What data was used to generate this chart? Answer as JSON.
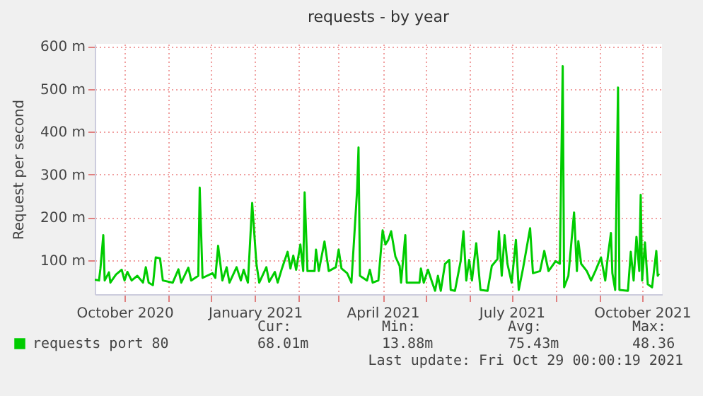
{
  "chart_data": {
    "type": "line",
    "title": "requests - by year",
    "ylabel": "Request per second",
    "xlim": [
      "2020-09-10",
      "2021-10-15"
    ],
    "xticks": [
      {
        "value": "2020-10-01",
        "label": "October 2020"
      },
      {
        "value": "2020-11-01",
        "label": null
      },
      {
        "value": "2020-12-01",
        "label": null
      },
      {
        "value": "2021-01-01",
        "label": "January 2021"
      },
      {
        "value": "2021-02-01",
        "label": null
      },
      {
        "value": "2021-03-01",
        "label": null
      },
      {
        "value": "2021-04-01",
        "label": "April 2021"
      },
      {
        "value": "2021-05-01",
        "label": null
      },
      {
        "value": "2021-06-01",
        "label": null
      },
      {
        "value": "2021-07-01",
        "label": "July 2021"
      },
      {
        "value": "2021-08-01",
        "label": null
      },
      {
        "value": "2021-09-01",
        "label": null
      },
      {
        "value": "2021-10-01",
        "label": "October 2021"
      }
    ],
    "ylim": [
      20,
      605
    ],
    "yticks": [
      {
        "value": 100,
        "label": "100 m"
      },
      {
        "value": 200,
        "label": "200 m"
      },
      {
        "value": 300,
        "label": "300 m"
      },
      {
        "value": 400,
        "label": "400 m"
      },
      {
        "value": 500,
        "label": "500 m"
      },
      {
        "value": 600,
        "label": "600 m"
      }
    ],
    "grid": true,
    "legend": "bottom",
    "marker": "none",
    "x": [
      "2020-09-10",
      "2020-09-13",
      "2020-09-14",
      "2020-09-16",
      "2020-09-17",
      "2020-09-20",
      "2020-09-21",
      "2020-09-25",
      "2020-09-29",
      "2020-10-01",
      "2020-10-03",
      "2020-10-06",
      "2020-10-10",
      "2020-10-14",
      "2020-10-16",
      "2020-10-18",
      "2020-10-21",
      "2020-10-23",
      "2020-10-26",
      "2020-10-28",
      "2020-11-04",
      "2020-11-08",
      "2020-11-10",
      "2020-11-15",
      "2020-11-17",
      "2020-11-22",
      "2020-11-23",
      "2020-11-25",
      "2020-12-02",
      "2020-12-04",
      "2020-12-06",
      "2020-12-09",
      "2020-12-12",
      "2020-12-14",
      "2020-12-19",
      "2020-12-22",
      "2020-12-24",
      "2020-12-27",
      "2020-12-30",
      "2021-01-02",
      "2021-01-04",
      "2021-01-09",
      "2021-01-11",
      "2021-01-15",
      "2021-01-17",
      "2021-01-20",
      "2021-01-24",
      "2021-01-26",
      "2021-01-28",
      "2021-01-30",
      "2021-02-02",
      "2021-02-04",
      "2021-02-05",
      "2021-02-07",
      "2021-02-12",
      "2021-02-13",
      "2021-02-15",
      "2021-02-19",
      "2021-02-22",
      "2021-02-27",
      "2021-03-01",
      "2021-03-03",
      "2021-03-07",
      "2021-03-10",
      "2021-03-14",
      "2021-03-15",
      "2021-03-16",
      "2021-03-21",
      "2021-03-23",
      "2021-03-25",
      "2021-03-29",
      "2021-04-01",
      "2021-04-03",
      "2021-04-05",
      "2021-04-07",
      "2021-04-10",
      "2021-04-13",
      "2021-04-14",
      "2021-04-17",
      "2021-04-18",
      "2021-04-27",
      "2021-04-28",
      "2021-04-30",
      "2021-05-03",
      "2021-05-06",
      "2021-05-08",
      "2021-05-10",
      "2021-05-12",
      "2021-05-15",
      "2021-05-18",
      "2021-05-19",
      "2021-05-22",
      "2021-05-26",
      "2021-05-28",
      "2021-05-30",
      "2021-06-01",
      "2021-06-03",
      "2021-06-06",
      "2021-06-09",
      "2021-06-14",
      "2021-06-17",
      "2021-06-21",
      "2021-06-22",
      "2021-06-24",
      "2021-06-26",
      "2021-06-28",
      "2021-07-01",
      "2021-07-04",
      "2021-07-06",
      "2021-07-09",
      "2021-07-14",
      "2021-07-16",
      "2021-07-21",
      "2021-07-24",
      "2021-07-27",
      "2021-08-01",
      "2021-08-04",
      "2021-08-06",
      "2021-08-07",
      "2021-08-10",
      "2021-08-14",
      "2021-08-16",
      "2021-08-17",
      "2021-08-19",
      "2021-08-23",
      "2021-08-26",
      "2021-08-29",
      "2021-09-02",
      "2021-09-05",
      "2021-09-07",
      "2021-09-09",
      "2021-09-10",
      "2021-09-12",
      "2021-09-14",
      "2021-09-15",
      "2021-09-21",
      "2021-09-23",
      "2021-09-25",
      "2021-09-27",
      "2021-09-29",
      "2021-09-30",
      "2021-10-01",
      "2021-10-03",
      "2021-10-05",
      "2021-10-08",
      "2021-10-11",
      "2021-10-12",
      "2021-10-13"
    ],
    "series": [
      {
        "name": "requests port 80",
        "color": "#00cc00",
        "values": [
          54,
          52,
          80,
          158,
          52,
          71,
          47,
          66,
          77,
          52,
          72,
          52,
          63,
          47,
          83,
          47,
          41,
          106,
          104,
          52,
          47,
          78,
          47,
          82,
          52,
          63,
          269,
          58,
          69,
          58,
          133,
          52,
          83,
          47,
          83,
          52,
          77,
          47,
          233,
          91,
          47,
          83,
          49,
          72,
          47,
          80,
          119,
          80,
          110,
          77,
          136,
          74,
          258,
          74,
          74,
          124,
          74,
          143,
          74,
          83,
          124,
          80,
          69,
          47,
          263,
          363,
          63,
          52,
          77,
          47,
          52,
          169,
          136,
          147,
          167,
          108,
          86,
          47,
          158,
          47,
          47,
          80,
          47,
          77,
          47,
          28,
          63,
          28,
          91,
          100,
          30,
          28,
          97,
          167,
          52,
          100,
          52,
          139,
          30,
          28,
          86,
          102,
          167,
          63,
          158,
          91,
          47,
          147,
          30,
          80,
          174,
          69,
          74,
          121,
          74,
          97,
          91,
          553,
          36,
          63,
          211,
          74,
          144,
          91,
          74,
          52,
          74,
          106,
          52,
          113,
          163,
          69,
          30,
          503,
          30,
          28,
          119,
          52,
          154,
          74,
          252,
          52,
          141,
          43,
          36,
          121,
          63,
          68
        ]
      }
    ],
    "annotations": [
      "Cur:",
      "Min:",
      "Avg:",
      "Max:",
      "68.01m",
      "13.88m",
      "75.43m",
      "48.36",
      "Last update: Fri Oct 29 00:00:19 2021"
    ]
  }
}
